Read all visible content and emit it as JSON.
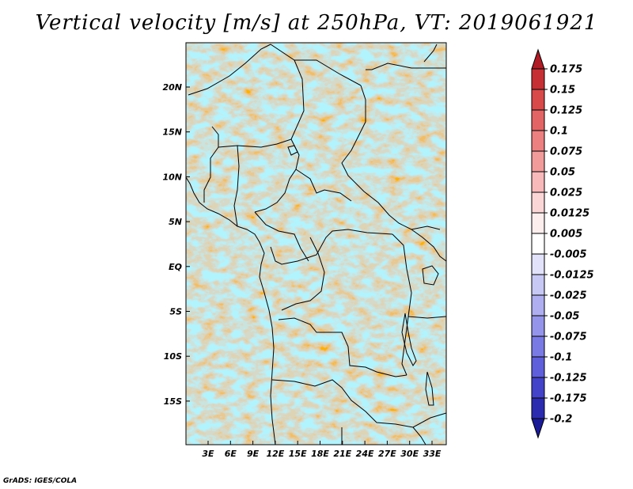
{
  "title": "Vertical velocity [m/s] at 250hPa, VT: 2019061921",
  "credit": "GrADS: IGES/COLA",
  "map": {
    "variable": "Vertical velocity",
    "units": "m/s",
    "level": "250hPa",
    "valid_time": "2019061921",
    "lon_ticks": [
      "3E",
      "6E",
      "9E",
      "12E",
      "15E",
      "18E",
      "21E",
      "24E",
      "27E",
      "30E",
      "33E"
    ],
    "lat_ticks": [
      "20N",
      "15N",
      "10N",
      "5N",
      "EQ",
      "5S",
      "10S",
      "15S"
    ]
  },
  "colorbar": {
    "labels": [
      "0.175",
      "0.15",
      "0.125",
      "0.1",
      "0.075",
      "0.05",
      "0.025",
      "0.0125",
      "0.005",
      "-0.005",
      "-0.0125",
      "-0.025",
      "-0.05",
      "-0.075",
      "-0.1",
      "-0.125",
      "-0.175",
      "-0.2"
    ],
    "colors": [
      "#b01c26",
      "#c62f34",
      "#d84a4a",
      "#e36464",
      "#ec8080",
      "#f29b9b",
      "#f7b9b9",
      "#fbd6d6",
      "#fdeeee",
      "#ffffff",
      "#e2e2fb",
      "#c8c8f5",
      "#aeaef0",
      "#9494ea",
      "#7a7ae4",
      "#5f5fdb",
      "#4343c9",
      "#2b2baf",
      "#1b1b97"
    ]
  }
}
